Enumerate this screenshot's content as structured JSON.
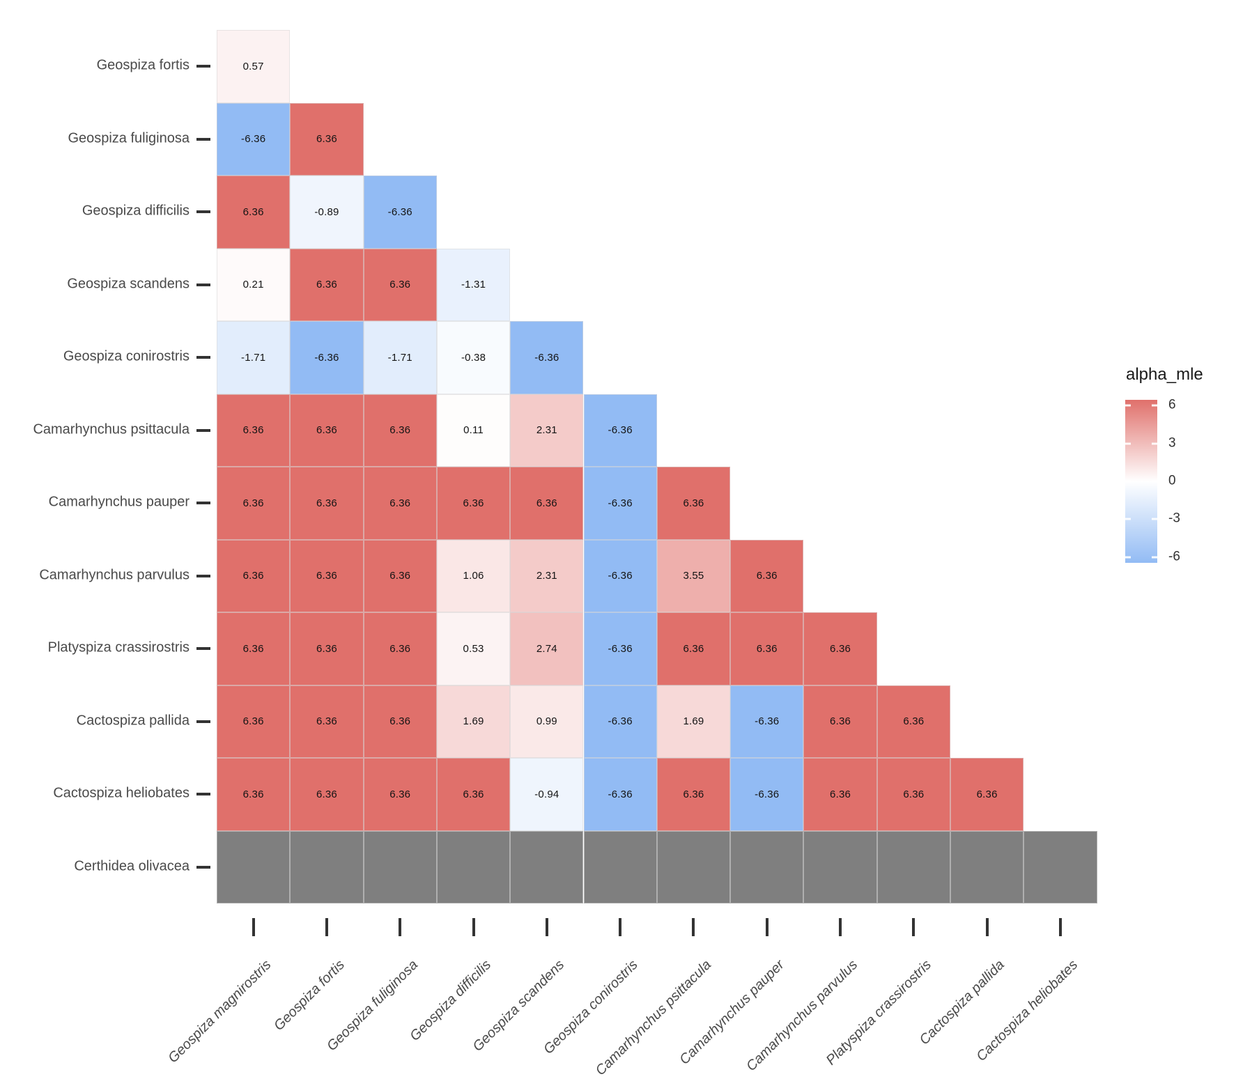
{
  "chart_data": {
    "type": "heatmap",
    "title": "",
    "shape": "lower-triangular pairwise matrix",
    "x_categories": [
      "Geospiza magnirostris",
      "Geospiza fortis",
      "Geospiza fuliginosa",
      "Geospiza difficilis",
      "Geospiza scandens",
      "Geospiza conirostris",
      "Camarhynchus psittacula",
      "Camarhynchus pauper",
      "Camarhynchus parvulus",
      "Platyspiza crassirostris",
      "Cactospiza pallida",
      "Cactospiza heliobates"
    ],
    "y_categories": [
      "Geospiza fortis",
      "Geospiza fuliginosa",
      "Geospiza difficilis",
      "Geospiza scandens",
      "Geospiza conirostris",
      "Camarhynchus psittacula",
      "Camarhynchus pauper",
      "Camarhynchus parvulus",
      "Platyspiza crassirostris",
      "Cactospiza pallida",
      "Cactospiza heliobates",
      "Certhidea olivacea"
    ],
    "rows": [
      {
        "species": "Geospiza fortis",
        "values": [
          0.57
        ]
      },
      {
        "species": "Geospiza fuliginosa",
        "values": [
          -6.36,
          6.36
        ]
      },
      {
        "species": "Geospiza difficilis",
        "values": [
          6.36,
          -0.89,
          -6.36
        ]
      },
      {
        "species": "Geospiza scandens",
        "values": [
          0.21,
          6.36,
          6.36,
          -1.31
        ]
      },
      {
        "species": "Geospiza conirostris",
        "values": [
          -1.71,
          -6.36,
          -1.71,
          -0.38,
          -6.36
        ]
      },
      {
        "species": "Camarhynchus psittacula",
        "values": [
          6.36,
          6.36,
          6.36,
          0.11,
          2.31,
          -6.36
        ]
      },
      {
        "species": "Camarhynchus pauper",
        "values": [
          6.36,
          6.36,
          6.36,
          6.36,
          6.36,
          -6.36,
          6.36
        ]
      },
      {
        "species": "Camarhynchus parvulus",
        "values": [
          6.36,
          6.36,
          6.36,
          1.06,
          2.31,
          -6.36,
          3.55,
          6.36
        ]
      },
      {
        "species": "Platyspiza crassirostris",
        "values": [
          6.36,
          6.36,
          6.36,
          0.53,
          2.74,
          -6.36,
          6.36,
          6.36,
          6.36
        ]
      },
      {
        "species": "Cactospiza pallida",
        "values": [
          6.36,
          6.36,
          6.36,
          1.69,
          0.99,
          -6.36,
          1.69,
          -6.36,
          6.36,
          6.36
        ]
      },
      {
        "species": "Cactospiza heliobates",
        "values": [
          6.36,
          6.36,
          6.36,
          6.36,
          -0.94,
          -6.36,
          6.36,
          -6.36,
          6.36,
          6.36,
          6.36
        ]
      },
      {
        "species": "Certhidea olivacea",
        "values": [
          "NA",
          "NA",
          "NA",
          "NA",
          "NA",
          "NA",
          "NA",
          "NA",
          "NA",
          "NA",
          "NA",
          "NA"
        ]
      }
    ],
    "value_domain": [
      -6.36,
      6.36
    ],
    "value_labels": true,
    "grid": false,
    "legend": {
      "title": "alpha_mle",
      "position": "right",
      "tick_labels": [
        "6",
        "3",
        "0",
        "-3",
        "-6"
      ],
      "tick_values": [
        6,
        3,
        0,
        -3,
        -6
      ],
      "range": [
        -6.47,
        6.47
      ]
    },
    "colors": {
      "high": "#E0706B",
      "mid": "#FFFFFF",
      "low": "#92BBF4",
      "na": "#7F7F7F",
      "axis_text": "#4a4a4a",
      "tick_mark": "#333333",
      "panel_background": "#FFFFFF"
    }
  }
}
